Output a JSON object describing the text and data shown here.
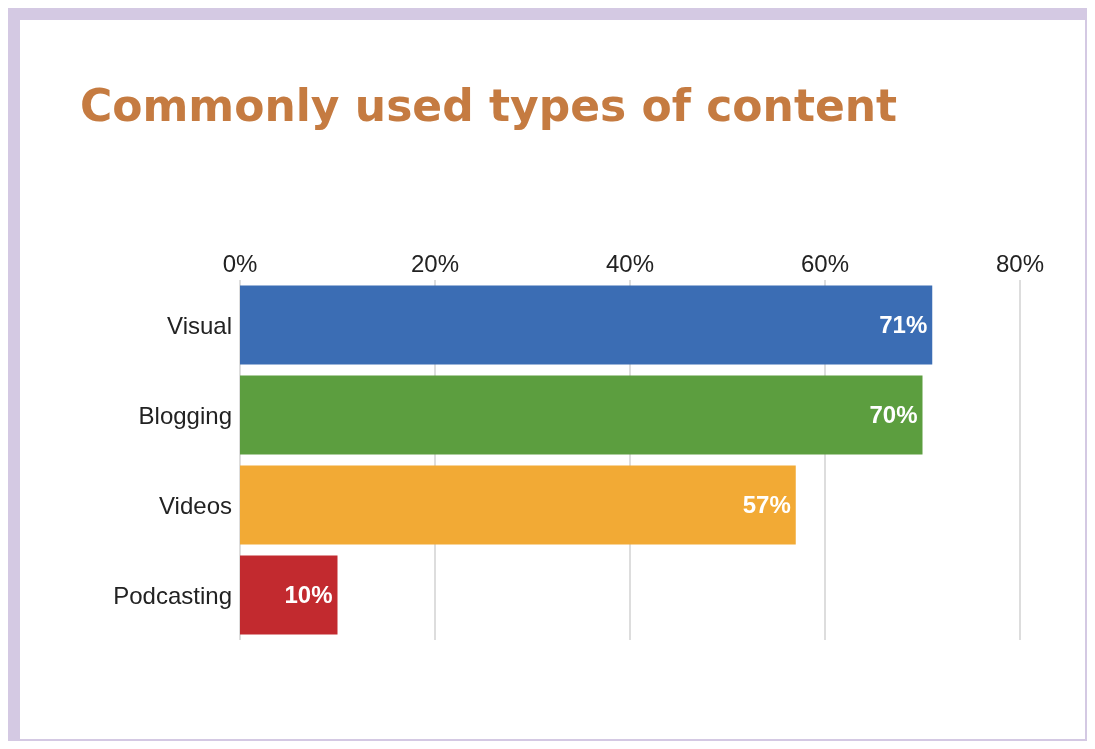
{
  "chart_data": {
    "type": "bar",
    "orientation": "horizontal",
    "title": "Commonly used types of content",
    "categories": [
      "Visual",
      "Blogging",
      "Videos",
      "Podcasting"
    ],
    "values": [
      71,
      70,
      57,
      10
    ],
    "colors": [
      "#3b6db4",
      "#5c9e3f",
      "#f2aa35",
      "#c22a2f"
    ],
    "value_labels": [
      "71%",
      "70%",
      "57%",
      "10%"
    ],
    "xlim": [
      0,
      80
    ],
    "xticks": [
      {
        "value": 0,
        "label": "0%"
      },
      {
        "value": 20,
        "label": "20%"
      },
      {
        "value": 40,
        "label": "40%"
      },
      {
        "value": 60,
        "label": "60%"
      },
      {
        "value": 80,
        "label": "80%"
      }
    ],
    "grid": "x"
  }
}
